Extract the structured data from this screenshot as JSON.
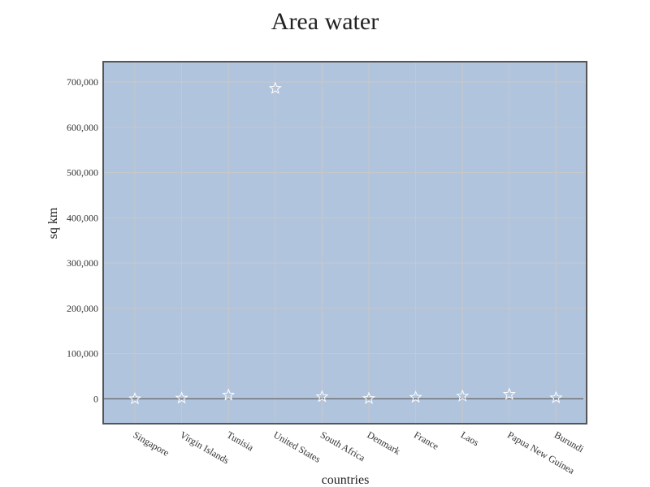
{
  "chart_data": {
    "type": "scatter",
    "title": "Area water",
    "xlabel": "countries",
    "ylabel": "sq km",
    "marker": "star",
    "categories": [
      "Singapore",
      "Virgin Islands",
      "Tunisia",
      "United States",
      "South Africa",
      "Denmark",
      "France",
      "Laos",
      "Papua New Guinea",
      "Burundi"
    ],
    "values": [
      10,
      1564,
      8250,
      685924,
      4620,
      700,
      3374,
      6000,
      9980,
      2180
    ],
    "ylim": [
      -55000,
      745000
    ],
    "yticks": [
      0,
      100000,
      200000,
      300000,
      400000,
      500000,
      600000,
      700000
    ],
    "ytick_labels": [
      "0",
      "100,000",
      "200,000",
      "300,000",
      "400,000",
      "500,000",
      "600,000",
      "700,000"
    ],
    "grid": true,
    "zero_line": true,
    "colors": {
      "plot_bg": "#b0c4de",
      "grid": "#c8c8c8",
      "frame": "#555555",
      "marker_stroke": "#ffffff",
      "zero_line": "#666666"
    }
  }
}
